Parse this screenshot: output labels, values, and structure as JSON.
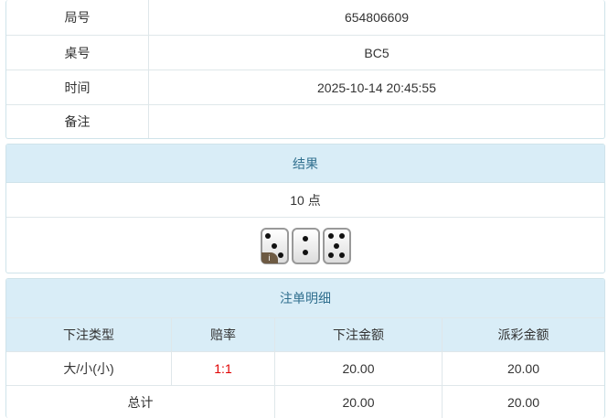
{
  "info": [
    {
      "label": "局号",
      "value": "654806609"
    },
    {
      "label": "桌号",
      "value": "BC5"
    },
    {
      "label": "时间",
      "value": "2025-10-14 20:45:55"
    },
    {
      "label": "备注",
      "value": ""
    }
  ],
  "result": {
    "title": "结果",
    "points": "10 点",
    "dice": [
      3,
      2,
      5
    ],
    "info_badge": "i"
  },
  "bets": {
    "title": "注单明细",
    "headers": [
      "下注类型",
      "赔率",
      "下注金额",
      "派彩金额"
    ],
    "rows": [
      {
        "type": "大/小(小)",
        "odds": "1:1",
        "amount": "20.00",
        "payout": "20.00"
      }
    ],
    "total": {
      "label": "总计",
      "amount": "20.00",
      "payout": "20.00"
    },
    "odds_color": "#e00000"
  }
}
